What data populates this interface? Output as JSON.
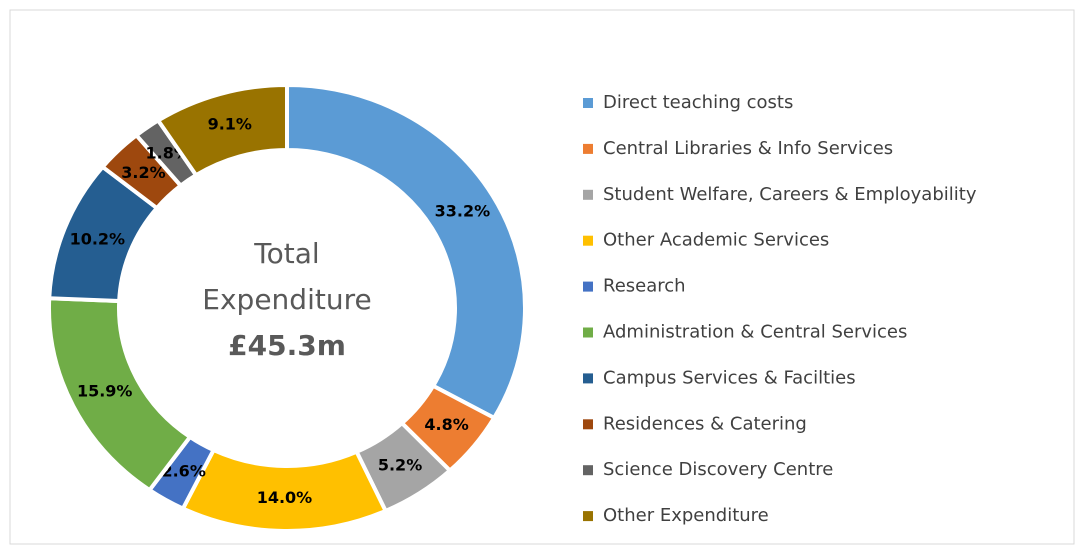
{
  "chart_data": {
    "type": "donut",
    "center_text": [
      "Total",
      "Expenditure",
      "£45.3m"
    ],
    "categories": [
      "Direct teaching costs",
      "Central Libraries & Info Services",
      "Student Welfare, Careers & Employability",
      "Other Academic Services",
      "Research",
      "Administration & Central Services",
      "Campus Services & Facilties",
      "Residences & Catering",
      "Science Discovery Centre",
      "Other Expenditure"
    ],
    "values": [
      33.2,
      4.8,
      5.2,
      14.0,
      2.6,
      15.9,
      10.2,
      3.2,
      1.8,
      9.1
    ],
    "value_labels": [
      "33.2%",
      "4.8%",
      "5.2%",
      "14.0%",
      "2.6%",
      "15.9%",
      "10.2%",
      "3.2%",
      "1.8%",
      "9.1%"
    ],
    "colors": [
      "#5b9bd5",
      "#ed7d31",
      "#a5a5a5",
      "#ffc000",
      "#4472c4",
      "#70ad47",
      "#255e91",
      "#9e480e",
      "#636363",
      "#997300"
    ],
    "legend": "right"
  }
}
